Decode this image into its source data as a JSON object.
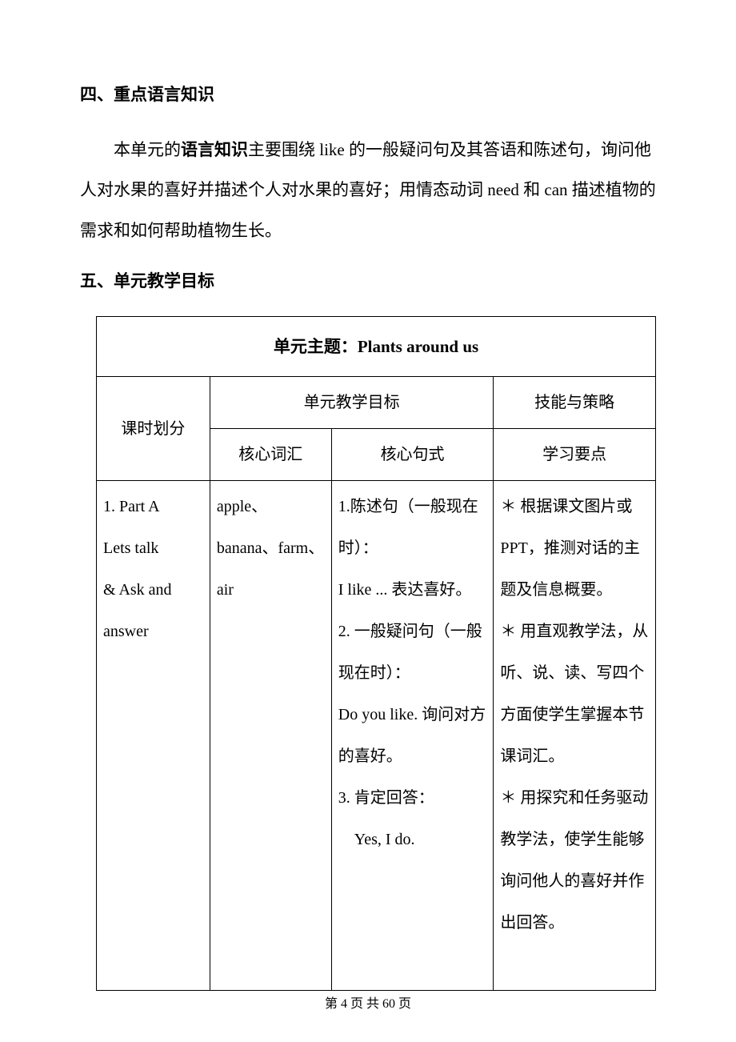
{
  "section4": {
    "heading": "四、重点语言知识",
    "para_pre": "本单元的",
    "para_bold": "语言知识",
    "para_post": "主要围绕 like 的一般疑问句及其答语和陈述句，询问他人对水果的喜好并描述个人对水果的喜好；用情态动词 need 和 can 描述植物的需求和如何帮助植物生长。"
  },
  "section5": {
    "heading": "五、单元教学目标",
    "table": {
      "title_prefix": "单元主题：",
      "title_main": "Plants around us",
      "headers": {
        "col1": "课时划分",
        "col2_group": "单元教学目标",
        "col2a": "核心词汇",
        "col2b": "核心句式",
        "col3_top": "技能与策略",
        "col3_bottom": "学习要点"
      },
      "row1": {
        "lesson": "1. Part A\nLets talk\n& Ask and\nanswer",
        "vocab": "apple、banana、farm、air",
        "sentence": "1.陈述句（一般现在时）：\nI like ... 表达喜好。\n2. 一般疑问句（一般现在时）：\nDo you like. 询问对方的喜好。\n3. 肯定回答：\n　Yes, I do.",
        "skills": "＊ 根据课文图片或PPT，推测对话的主题及信息概要。\n＊ 用直观教学法，从听、说、读、写四个方面使学生掌握本节课词汇。\n＊ 用探究和任务驱动教学法，使学生能够询问他人的喜好并作出回答。\n　"
      }
    }
  },
  "footer": {
    "text": "第 4 页 共 60 页"
  },
  "colors": {
    "text": "#000000",
    "background": "#ffffff",
    "border": "#000000"
  }
}
